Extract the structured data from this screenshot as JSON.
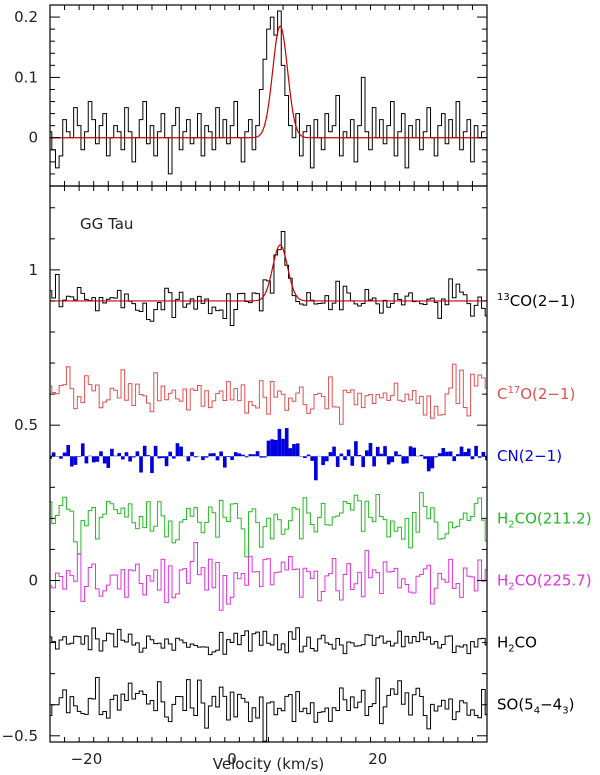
{
  "chart_data": [
    {
      "type": "line",
      "panel": "top",
      "xlabel": "",
      "ylabel": "",
      "xlim": [
        -25,
        35
      ],
      "ylim": [
        -0.08,
        0.22
      ],
      "yticks": [
        "0",
        "0.1",
        "0.2"
      ],
      "ytick_values": [
        0,
        0.1,
        0.2
      ],
      "series": [
        {
          "style": "histogram",
          "color": "#000000",
          "x_start": -25,
          "x_step": 0.5,
          "values": [
            0.01,
            -0.02,
            -0.05,
            -0.03,
            0.03,
            0.01,
            0.0,
            0.05,
            0.02,
            -0.02,
            0.01,
            0.06,
            0.03,
            -0.01,
            0.02,
            0.04,
            -0.03,
            0.0,
            0.02,
            0.01,
            -0.02,
            0.05,
            0.01,
            -0.04,
            0.0,
            0.03,
            0.06,
            -0.01,
            0.02,
            -0.03,
            0.01,
            0.04,
            0.0,
            -0.06,
            0.02,
            0.05,
            -0.02,
            0.01,
            0.03,
            -0.01,
            0.0,
            0.04,
            -0.03,
            0.02,
            0.01,
            -0.02,
            0.05,
            0.0,
            0.03,
            -0.01,
            0.02,
            0.06,
            0.0,
            -0.04,
            0.01,
            0.03,
            -0.02,
            0.02,
            0.08,
            0.13,
            0.18,
            0.2,
            0.17,
            0.21,
            0.12,
            0.07,
            0.02,
            0.0,
            0.04,
            -0.03,
            0.01,
            0.02,
            -0.05,
            0.03,
            0.0,
            -0.02,
            0.04,
            0.01,
            0.02,
            0.07,
            -0.03,
            0.01,
            0.0,
            0.03,
            -0.04,
            0.02,
            0.1,
            0.01,
            -0.02,
            0.05,
            0.0,
            0.03,
            -0.01,
            0.02,
            0.06,
            -0.03,
            0.01,
            0.04,
            -0.05,
            0.02,
            0.0,
            0.03,
            -0.02,
            0.01,
            0.05,
            0.0,
            -0.03,
            0.02,
            0.04,
            -0.01,
            0.03,
            0.0,
            0.06,
            -0.02,
            0.01,
            0.03,
            -0.04,
            0.02,
            0.0,
            0.01
          ]
        },
        {
          "style": "gaussian-fit",
          "color": "#cc0000",
          "amplitude": 0.185,
          "center": 6.6,
          "fwhm": 2.4,
          "offset": 0.0
        }
      ]
    },
    {
      "type": "line",
      "panel": "bottom",
      "title": "GG Tau",
      "xlabel": "Velocity (km/s)",
      "ylabel": "",
      "xlim": [
        -25,
        35
      ],
      "ylim": [
        -0.52,
        1.27
      ],
      "xticks": [
        "−20",
        "0",
        "20"
      ],
      "xtick_values": [
        -20,
        0,
        20
      ],
      "yticks": [
        "−0.5",
        "0",
        "0.5",
        "1"
      ],
      "ytick_values": [
        -0.5,
        0,
        0.5,
        1
      ],
      "series": [
        {
          "name_main": "CO(2−1)",
          "name_sup": "13",
          "name_pre": "",
          "color": "#000000",
          "baseline": 0.9,
          "noise": 0.03,
          "fill": false,
          "line": {
            "amplitude": 0.18,
            "center": 6.6,
            "fwhm": 2.4
          },
          "fit": {
            "amplitude": 0.18,
            "center": 6.6,
            "fwhm": 2.4,
            "color": "#cc0000"
          }
        },
        {
          "name_pre": "C",
          "name_sup": "17",
          "name_main": "O(2−1)",
          "color": "#e05050",
          "baseline": 0.6,
          "noise": 0.035,
          "fill": false
        },
        {
          "name_pre": "",
          "name_sup": "",
          "name_main": "CN(2−1)",
          "color": "#0000dd",
          "baseline": 0.4,
          "noise": 0.025,
          "fill": true,
          "line": {
            "amplitude": 0.09,
            "center": 6.5,
            "fwhm": 2.5
          }
        },
        {
          "name_pre": "H",
          "name_sub": "2",
          "name_main": "CO(211.2)",
          "color": "#22bb22",
          "baseline": 0.2,
          "noise": 0.04,
          "fill": false
        },
        {
          "name_pre": "H",
          "name_sub": "2",
          "name_main": "CO(225.7)",
          "color": "#dd33dd",
          "baseline": 0.0,
          "noise": 0.045,
          "fill": false
        },
        {
          "name_pre": "H",
          "name_sub": "2",
          "name_main": "CO",
          "color": "#000000",
          "baseline": -0.2,
          "noise": 0.02,
          "fill": false
        },
        {
          "name_pre": "SO(5",
          "name_sub": "4",
          "name_main": "−4",
          "name_sub2": "3",
          "name_post": ")",
          "color": "#000000",
          "baseline": -0.4,
          "noise": 0.035,
          "fill": false
        }
      ]
    }
  ]
}
